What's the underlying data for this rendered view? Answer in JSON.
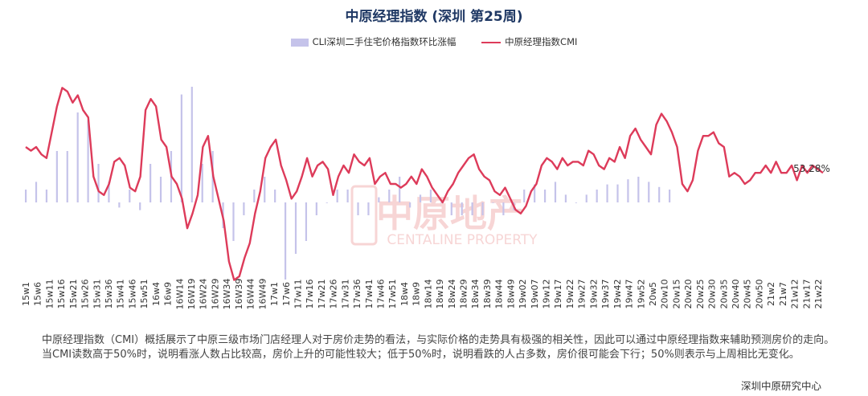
{
  "chart_data": {
    "type": "bar+line",
    "title": "中原经理指数 (深圳 第25周)",
    "legend_position": "top",
    "grid": false,
    "series": [
      {
        "name": "CLI深圳二手住宅价格指数环比涨幅",
        "type": "bar",
        "color": "#c5c3ea"
      },
      {
        "name": "中原经理指数CMI",
        "type": "line",
        "color": "#dd3b5a"
      }
    ],
    "x_tick_labels": [
      "15w1",
      "15w6",
      "15w11",
      "15w16",
      "15w21",
      "15w26",
      "15w31",
      "15w36",
      "15w41",
      "15w46",
      "15w51",
      "16w4",
      "16w9",
      "16W14",
      "16W19",
      "16W24",
      "16W29",
      "16W34",
      "16W39",
      "16W44",
      "16W49",
      "17w1",
      "17w6",
      "17w11",
      "17w16",
      "17w21",
      "17w26",
      "17w31",
      "17w36",
      "17w41",
      "17w46",
      "17w51",
      "18w4",
      "18w9",
      "18w14",
      "18w19",
      "18w24",
      "18w29",
      "18w34",
      "18w39",
      "18w44",
      "18w49",
      "19w02",
      "19w07",
      "19w12",
      "19w17",
      "19w22",
      "19w27",
      "19w32",
      "19w37",
      "19w42",
      "19w47",
      "19w52",
      "20w5",
      "20w10",
      "20w15",
      "20w20",
      "20w25",
      "20w30",
      "20w35",
      "20w40",
      "20w45",
      "20w50",
      "21w2",
      "21w7",
      "21w12",
      "21w17",
      "21w22"
    ],
    "cmi_values": [
      60,
      59,
      60,
      58,
      57,
      64,
      71,
      76,
      75,
      72,
      74,
      70,
      68,
      52,
      48,
      47,
      50,
      56,
      57,
      55,
      49,
      48,
      52,
      70,
      73,
      71,
      62,
      60,
      52,
      50,
      46,
      38,
      42,
      47,
      60,
      63,
      52,
      46,
      40,
      29,
      24,
      25,
      30,
      34,
      42,
      48,
      57,
      60,
      62,
      55,
      51,
      46,
      48,
      52,
      57,
      52,
      55,
      56,
      54,
      47,
      52,
      55,
      53,
      58,
      56,
      55,
      57,
      50,
      52,
      53,
      50,
      50,
      49,
      50,
      52,
      50,
      54,
      52,
      49,
      47,
      45,
      48,
      50,
      53,
      55,
      57,
      58,
      54,
      52,
      51,
      48,
      47,
      49,
      46,
      43,
      42,
      44,
      48,
      50,
      55,
      57,
      56,
      54,
      57,
      55,
      56,
      56,
      55,
      59,
      58,
      55,
      54,
      57,
      56,
      60,
      57,
      63,
      65,
      62,
      60,
      58,
      66,
      69,
      67,
      64,
      60,
      50,
      48,
      51,
      59,
      63,
      63,
      64,
      61,
      60,
      52,
      53,
      52,
      50,
      51,
      53,
      53,
      55,
      53,
      56,
      53,
      53,
      55,
      51,
      55,
      53,
      55,
      54,
      53
    ],
    "cli_values": [
      0.5,
      0.8,
      0.5,
      2.0,
      2.0,
      3.5,
      3.2,
      1.5,
      0.8,
      -0.2,
      0.5,
      -0.3,
      1.5,
      1.0,
      2.0,
      4.2,
      4.5,
      1.5,
      2.0,
      -1.0,
      -1.5,
      -0.5,
      0.5,
      1.0,
      0.5,
      -3.0,
      -2.0,
      -1.5,
      -0.5,
      0.0,
      0.5,
      0.5,
      -0.5,
      -0.5,
      0.2,
      0.5,
      1.0,
      -0.2,
      0.3,
      0.5,
      0.0,
      -0.5,
      -0.5,
      -0.5,
      -0.5,
      0.0,
      -0.5,
      -0.3,
      0.5,
      0.7,
      0.5,
      0.8,
      0.3,
      0.0,
      0.3,
      0.5,
      0.7,
      0.7,
      0.9,
      1.0,
      0.8,
      0.6,
      0.5
    ],
    "annotation": "53.28%",
    "note": "中原经理指数（CMI）概括展示了中原三级市场门店经理人对于房价走势的看法，与实际价格的走势具有极强的相关性，因此可以通过中原经理指数来辅助预测房价的走向。当CMI读数高于50%时，说明看涨人数占比较高，房价上升的可能性较大；低于50%时，说明看跌的人占多数，房价很可能会下行；50%则表示与上周相比无变化。",
    "source": "深圳中原研究中心",
    "watermark": {
      "cn": "中原地产",
      "en": "CENTALINE PROPERTY"
    }
  }
}
